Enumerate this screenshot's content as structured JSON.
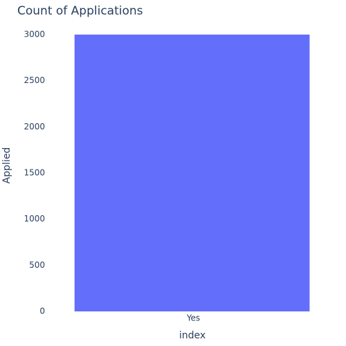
{
  "chart_data": {
    "type": "bar",
    "title": "Count of Applications",
    "xlabel": "index",
    "ylabel": "Applied",
    "categories": [
      "Yes"
    ],
    "values": [
      3000
    ],
    "ylim": [
      0,
      3000
    ],
    "yticks": [
      "0",
      "500",
      "1000",
      "1500",
      "2000",
      "2500",
      "3000"
    ],
    "grid": false,
    "legend": "none",
    "bar_color": "#636efa",
    "text_color": "#2a3f5f",
    "background": "#ffffff"
  }
}
